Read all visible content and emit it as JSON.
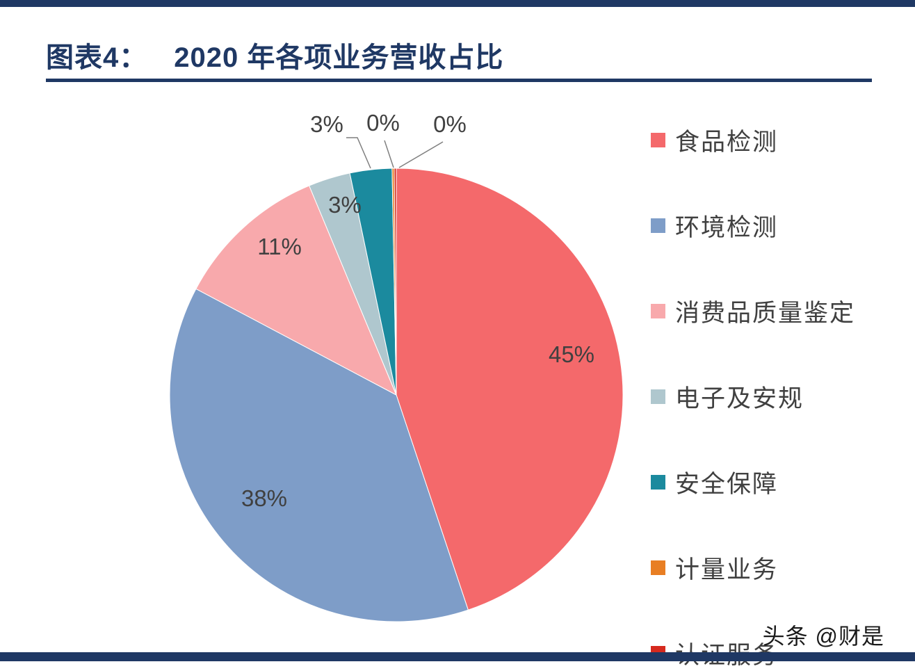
{
  "page": {
    "figure_label": "图表4：",
    "figure_title": "2020 年各项业务营收占比",
    "watermark": "头条 @财是",
    "accent_color": "#1F3864",
    "text_color": "#404040"
  },
  "chart_data": {
    "type": "pie",
    "title": "2020 年各项业务营收占比",
    "legend_position": "right",
    "direction": "clockwise",
    "start_angle_deg": 0,
    "slices": [
      {
        "label": "食品检测",
        "value": 45,
        "pct_label": "45%",
        "color": "#F4696B"
      },
      {
        "label": "环境检测",
        "value": 38,
        "pct_label": "38%",
        "color": "#7E9DC8"
      },
      {
        "label": "消费品质量鉴定",
        "value": 11,
        "pct_label": "11%",
        "color": "#F8A9AC"
      },
      {
        "label": "电子及安规",
        "value": 3,
        "pct_label": "3%",
        "color": "#AFC7CE"
      },
      {
        "label": "安全保障",
        "value": 3,
        "pct_label": "3%",
        "color": "#1B8A9E"
      },
      {
        "label": "计量业务",
        "value": 0,
        "pct_label": "0%",
        "color": "#E87E23"
      },
      {
        "label": "认证服务",
        "value": 0,
        "pct_label": "0%",
        "color": "#D62A1E"
      }
    ]
  }
}
